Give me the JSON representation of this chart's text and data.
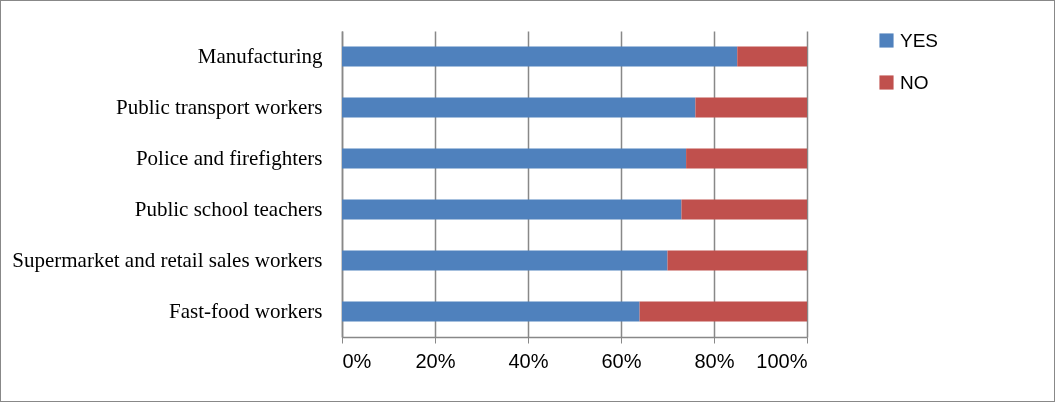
{
  "chart_data": {
    "type": "bar",
    "orientation": "horizontal",
    "stacked": true,
    "categories": [
      "Manufacturing",
      "Public transport workers",
      "Police and firefighters",
      "Public school teachers",
      "Supermarket and retail sales workers",
      "Fast-food workers"
    ],
    "series": [
      {
        "name": "YES",
        "color": "#4f81bd",
        "values": [
          85,
          76,
          74,
          73,
          70,
          64
        ]
      },
      {
        "name": "NO",
        "color": "#c0504d",
        "values": [
          15,
          24,
          26,
          27,
          30,
          36
        ]
      }
    ],
    "xlim": [
      0,
      100
    ],
    "xticks": [
      {
        "value": 0,
        "label": "0%"
      },
      {
        "value": 20,
        "label": "20%"
      },
      {
        "value": 40,
        "label": "40%"
      },
      {
        "value": 60,
        "label": "60%"
      },
      {
        "value": 80,
        "label": "80%"
      },
      {
        "value": 100,
        "label": "100%"
      }
    ],
    "grid": "x",
    "legend": "right"
  }
}
